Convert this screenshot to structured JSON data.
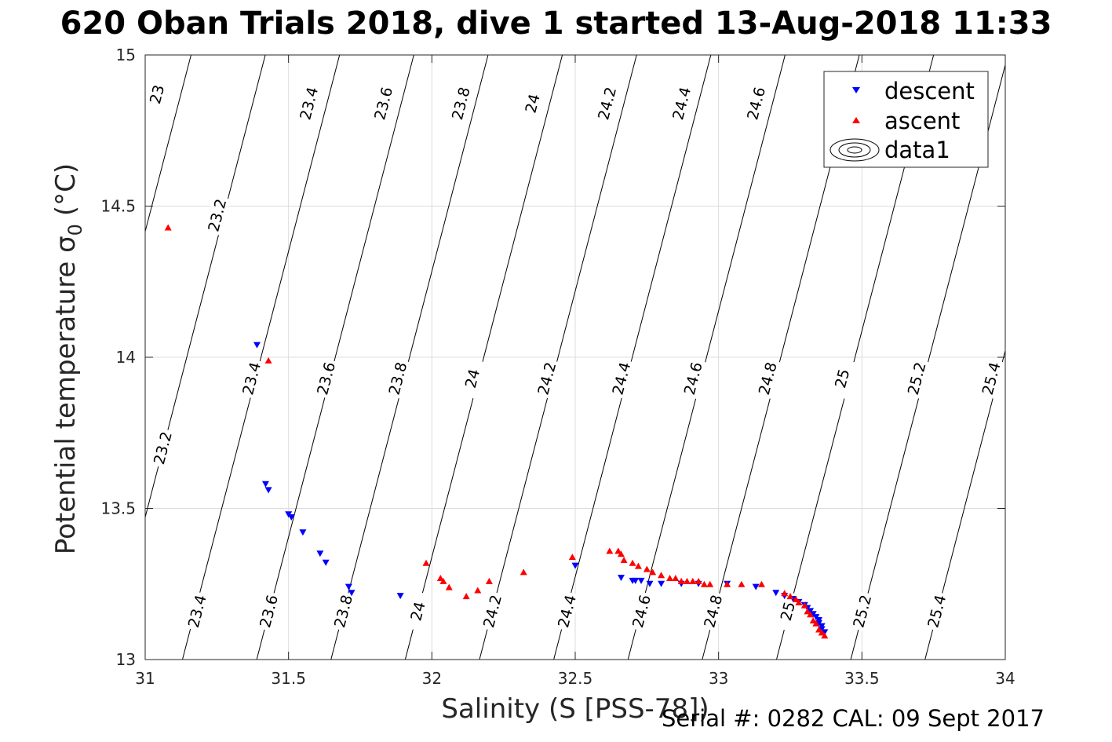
{
  "title": "620 Oban Trials 2018, dive 1 started 13-Aug-2018 11:33",
  "footer": "Serial #: 0282  CAL: 09 Sept 2017",
  "chart_data": {
    "type": "scatter",
    "xlabel": "Salinity (S [PSS-78])",
    "ylabel": "Potential temperature σ",
    "ylabel_subscript": "0",
    "ylabel_unit": "(°C)",
    "xlim": [
      31,
      34
    ],
    "ylim": [
      13,
      15
    ],
    "xticks": [
      "31",
      "31.5",
      "32",
      "32.5",
      "33",
      "33.5",
      "34"
    ],
    "yticks": [
      "13",
      "13.5",
      "14",
      "14.5",
      "15"
    ],
    "grid": true,
    "legend_position": "top-right",
    "legend": [
      "descent",
      "ascent",
      "data1"
    ],
    "colors": {
      "descent": "#0000ff",
      "ascent": "#ff0000",
      "contour": "#000000"
    },
    "series": [
      {
        "name": "descent",
        "marker": "triangle-down",
        "x": [
          31.39,
          31.42,
          31.43,
          31.5,
          31.51,
          31.55,
          31.61,
          31.63,
          31.71,
          31.72,
          31.89,
          32.5,
          32.66,
          32.7,
          32.71,
          32.73,
          32.76,
          32.8,
          32.87,
          32.93,
          33.03,
          33.13,
          33.2,
          33.23,
          33.26,
          33.28,
          33.3,
          33.31,
          33.32,
          33.33,
          33.34,
          33.35,
          33.35,
          33.36,
          33.36,
          33.37
        ],
        "y": [
          14.04,
          13.58,
          13.56,
          13.48,
          13.47,
          13.42,
          13.35,
          13.32,
          13.24,
          13.22,
          13.21,
          13.31,
          13.27,
          13.26,
          13.26,
          13.26,
          13.25,
          13.25,
          13.25,
          13.25,
          13.25,
          13.24,
          13.22,
          13.21,
          13.2,
          13.19,
          13.18,
          13.17,
          13.16,
          13.15,
          13.14,
          13.13,
          13.12,
          13.11,
          13.1,
          13.09
        ]
      },
      {
        "name": "ascent",
        "marker": "triangle-up",
        "x": [
          31.08,
          31.43,
          31.98,
          32.03,
          32.04,
          32.06,
          32.12,
          32.16,
          32.2,
          32.32,
          32.49,
          32.62,
          32.65,
          32.66,
          32.67,
          32.7,
          32.72,
          32.75,
          32.77,
          32.8,
          32.83,
          32.85,
          32.87,
          32.89,
          32.91,
          32.93,
          32.95,
          32.97,
          33.03,
          33.08,
          33.15,
          33.23,
          33.25,
          33.27,
          33.28,
          33.3,
          33.31,
          33.32,
          33.33,
          33.34,
          33.35,
          33.36,
          33.37
        ],
        "y": [
          14.43,
          13.99,
          13.32,
          13.27,
          13.26,
          13.24,
          13.21,
          13.23,
          13.26,
          13.29,
          13.34,
          13.36,
          13.36,
          13.35,
          13.33,
          13.32,
          13.31,
          13.3,
          13.29,
          13.28,
          13.27,
          13.27,
          13.26,
          13.26,
          13.26,
          13.26,
          13.25,
          13.25,
          13.25,
          13.25,
          13.25,
          13.22,
          13.21,
          13.2,
          13.19,
          13.18,
          13.16,
          13.15,
          13.13,
          13.12,
          13.1,
          13.09,
          13.08
        ]
      }
    ],
    "contours": {
      "name": "data1",
      "levels": [
        23,
        23.2,
        23.4,
        23.6,
        23.8,
        24,
        24.2,
        24.4,
        24.6,
        24.8,
        25,
        25.2,
        25.4
      ],
      "labels": [
        {
          "text": "23",
          "x": 31.04,
          "y": 14.87
        },
        {
          "text": "23.2",
          "x": 31.25,
          "y": 14.47
        },
        {
          "text": "23.4",
          "x": 31.57,
          "y": 14.84
        },
        {
          "text": "23.6",
          "x": 31.83,
          "y": 14.84
        },
        {
          "text": "23.8",
          "x": 32.1,
          "y": 14.84
        },
        {
          "text": "24",
          "x": 32.35,
          "y": 14.84
        },
        {
          "text": "24.2",
          "x": 32.61,
          "y": 14.84
        },
        {
          "text": "24.4",
          "x": 32.87,
          "y": 14.84
        },
        {
          "text": "24.6",
          "x": 33.13,
          "y": 14.84
        },
        {
          "text": "23.2",
          "x": 31.06,
          "y": 13.7
        },
        {
          "text": "23.4",
          "x": 31.37,
          "y": 13.93
        },
        {
          "text": "23.6",
          "x": 31.63,
          "y": 13.93
        },
        {
          "text": "23.8",
          "x": 31.88,
          "y": 13.93
        },
        {
          "text": "24",
          "x": 32.14,
          "y": 13.93
        },
        {
          "text": "24.2",
          "x": 32.4,
          "y": 13.93
        },
        {
          "text": "24.4",
          "x": 32.66,
          "y": 13.93
        },
        {
          "text": "24.6",
          "x": 32.91,
          "y": 13.93
        },
        {
          "text": "24.8",
          "x": 33.17,
          "y": 13.93
        },
        {
          "text": "25",
          "x": 33.43,
          "y": 13.93
        },
        {
          "text": "25.2",
          "x": 33.69,
          "y": 13.93
        },
        {
          "text": "25.4",
          "x": 33.95,
          "y": 13.93
        },
        {
          "text": "23.4",
          "x": 31.18,
          "y": 13.16
        },
        {
          "text": "23.6",
          "x": 31.43,
          "y": 13.16
        },
        {
          "text": "23.8",
          "x": 31.69,
          "y": 13.16
        },
        {
          "text": "24",
          "x": 31.95,
          "y": 13.16
        },
        {
          "text": "24.2",
          "x": 32.21,
          "y": 13.16
        },
        {
          "text": "24.4",
          "x": 32.47,
          "y": 13.16
        },
        {
          "text": "24.6",
          "x": 32.73,
          "y": 13.16
        },
        {
          "text": "24.8",
          "x": 32.98,
          "y": 13.16
        },
        {
          "text": "25",
          "x": 33.24,
          "y": 13.16
        },
        {
          "text": "25.2",
          "x": 33.5,
          "y": 13.16
        },
        {
          "text": "25.4",
          "x": 33.76,
          "y": 13.16
        }
      ]
    }
  }
}
